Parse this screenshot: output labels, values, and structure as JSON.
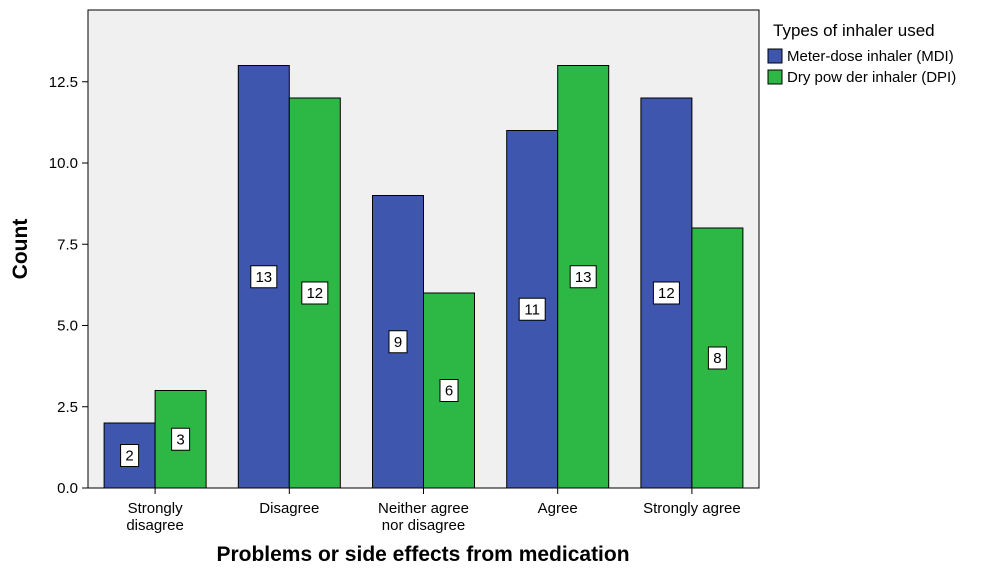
{
  "chart_data": {
    "type": "bar",
    "xlabel": "Problems or side effects from medication",
    "ylabel": "Count",
    "ylim": [
      0,
      14
    ],
    "yticks": [
      "0.0",
      "2.5",
      "5.0",
      "7.5",
      "10.0",
      "12.5"
    ],
    "categories": [
      [
        "Strongly",
        "disagree"
      ],
      [
        "Disagree"
      ],
      [
        "Neither agree",
        "nor disagree"
      ],
      [
        "Agree"
      ],
      [
        "Strongly agree"
      ]
    ],
    "series": [
      {
        "name": "Meter-dose inhaler (MDI)",
        "color": "#3e56ae",
        "values": [
          2,
          13,
          9,
          11,
          12
        ]
      },
      {
        "name": "Dry pow der inhaler (DPI)",
        "color": "#2db744",
        "values": [
          3,
          12,
          6,
          13,
          8
        ]
      }
    ],
    "legend": {
      "title": "Types of inhaler used",
      "placement": "top-right"
    },
    "plot_background": "#f0f0f0",
    "grid": false
  }
}
